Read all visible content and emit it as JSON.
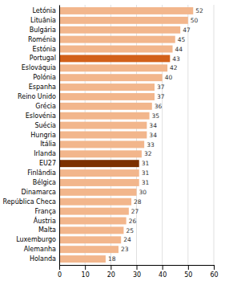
{
  "chart_data": {
    "type": "bar",
    "orientation": "horizontal",
    "categories": [
      "Letónia",
      "Lituânia",
      "Bulgária",
      "Roménia",
      "Estónia",
      "Portugal",
      "Eslováquia",
      "Polónia",
      "Espanha",
      "Reino Unido",
      "Grécia",
      "Eslovénia",
      "Suécia",
      "Hungria",
      "Itália",
      "Irlanda",
      "EU27",
      "Finlândia",
      "Bélgica",
      "Dinamarca",
      "República Checa",
      "França",
      "Áustria",
      "Malta",
      "Luxemburgo",
      "Alemanha",
      "Holanda"
    ],
    "values": [
      52,
      50,
      47,
      45,
      44,
      43,
      42,
      40,
      37,
      37,
      36,
      35,
      34,
      34,
      33,
      32,
      31,
      31,
      31,
      30,
      28,
      27,
      26,
      25,
      24,
      23,
      18
    ],
    "colors": [
      "#f2b68c",
      "#f2b68c",
      "#f2b68c",
      "#f2b68c",
      "#f2b68c",
      "#d2601a",
      "#f2b68c",
      "#f2b68c",
      "#f2b68c",
      "#f2b68c",
      "#f2b68c",
      "#f2b68c",
      "#f2b68c",
      "#f2b68c",
      "#f2b68c",
      "#f2b68c",
      "#7b3000",
      "#f2b68c",
      "#f2b68c",
      "#f2b68c",
      "#f2b68c",
      "#f2b68c",
      "#f2b68c",
      "#f2b68c",
      "#f2b68c",
      "#f2b68c",
      "#f2b68c"
    ],
    "xlim": [
      0,
      60
    ],
    "xticks": [
      0,
      10,
      20,
      30,
      40,
      50,
      60
    ],
    "grid": true,
    "data_labels": true
  }
}
